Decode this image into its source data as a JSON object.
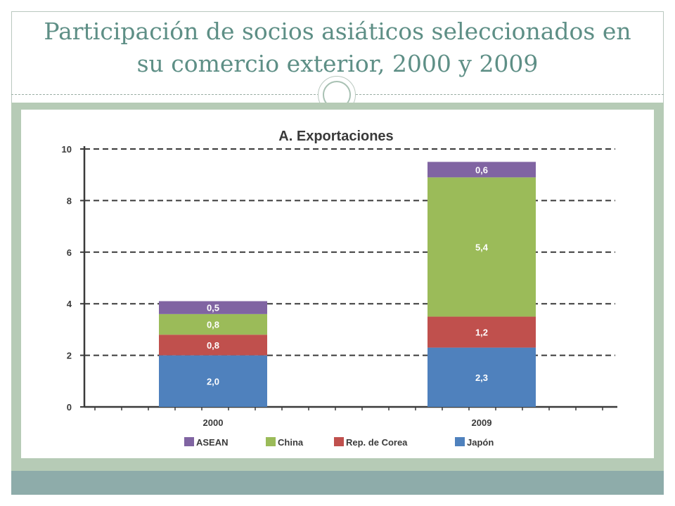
{
  "slide": {
    "title_line1": "Participación de socios asiáticos seleccionados en",
    "title_line2": "su comercio exterior, 2000 y 2009",
    "ring_icon": "circle-ring-icon"
  },
  "colors": {
    "title": "#5e8f86",
    "ASEAN": "#8064a2",
    "China": "#9bbb59",
    "Rep. de Corea": "#c0504d",
    "Japón": "#4f81bd"
  },
  "chart_data": {
    "type": "bar",
    "stacked": true,
    "title": "A. Exportaciones",
    "categories": [
      "2000",
      "2009"
    ],
    "series": [
      {
        "name": "Japón",
        "values": [
          2.0,
          2.3
        ],
        "labels": [
          "2,0",
          "2,3"
        ]
      },
      {
        "name": "Rep. de Corea",
        "values": [
          0.8,
          1.2
        ],
        "labels": [
          "0,8",
          "1,2"
        ]
      },
      {
        "name": "China",
        "values": [
          0.8,
          5.4
        ],
        "labels": [
          "0,8",
          "5,4"
        ]
      },
      {
        "name": "ASEAN",
        "values": [
          0.5,
          0.6
        ],
        "labels": [
          "0,5",
          "0,6"
        ]
      }
    ],
    "legend": [
      "ASEAN",
      "China",
      "Rep. de Corea",
      "Japón"
    ],
    "legend_position": "bottom",
    "ylim": [
      0,
      10
    ],
    "yticks": [
      "0",
      "2",
      "4",
      "6",
      "8",
      "10"
    ],
    "grid": "dashed-horizontal"
  }
}
